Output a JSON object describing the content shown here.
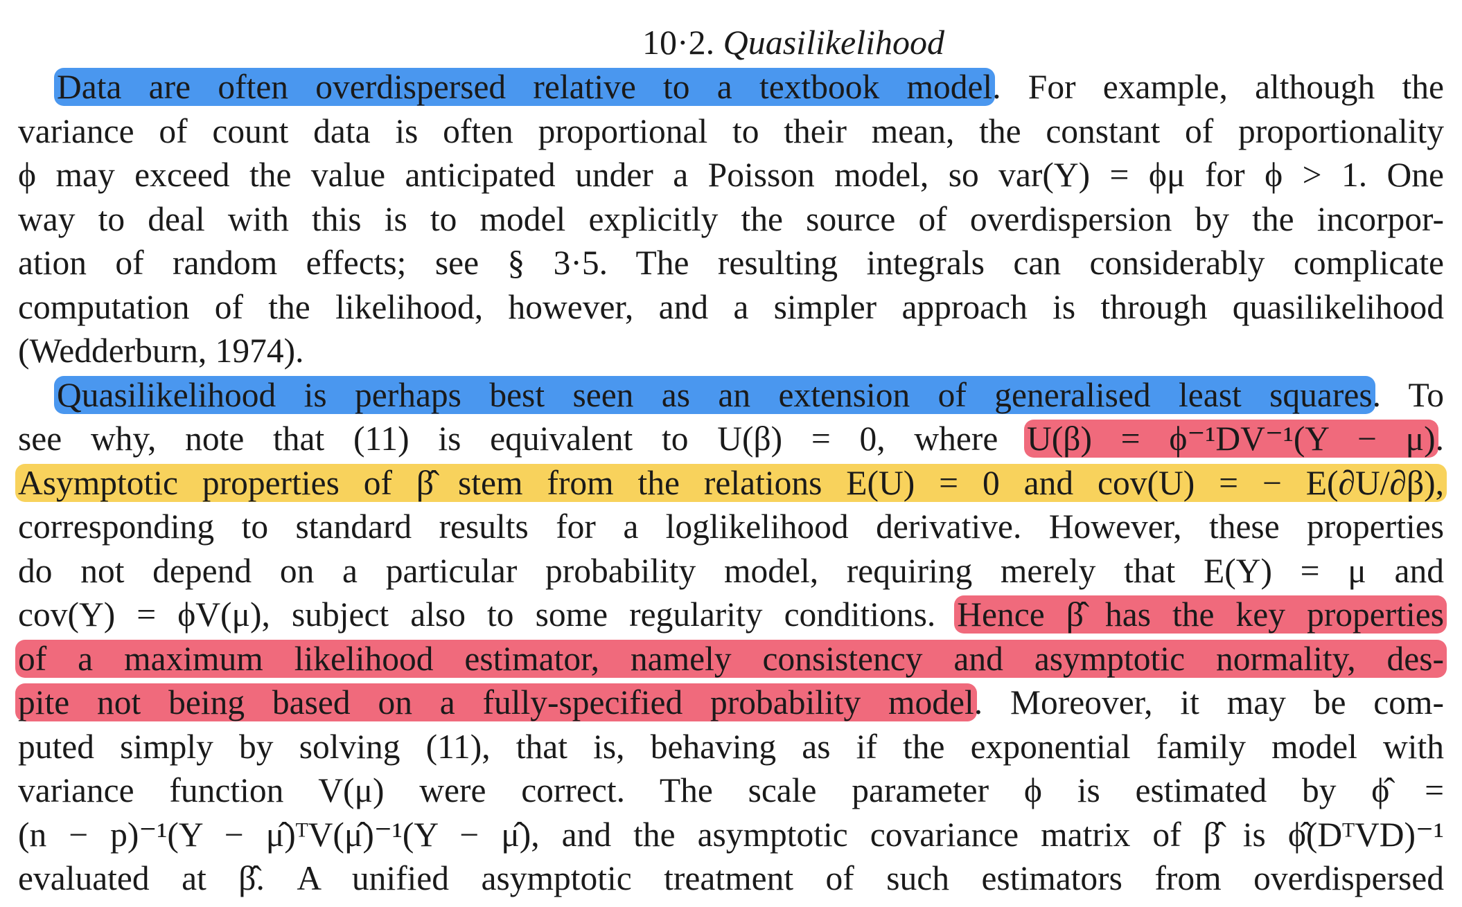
{
  "heading": {
    "number": "10·2.",
    "title": "Quasilikelihood"
  },
  "paragraph1": {
    "lines": [
      {
        "hl_blue": "Data are often overdispersed relative to a textbook model",
        "rest": ". For example, although the"
      },
      {
        "text": "variance of count data is often proportional to their mean, the constant of proportionality"
      },
      {
        "text": "ϕ may exceed the value anticipated under a Poisson model, so var(Y) = ϕμ for ϕ > 1. One"
      },
      {
        "text": "way to deal with this is to model explicitly the source of overdispersion by the incorpor-"
      },
      {
        "text": "ation of random effects; see § 3·5. The resulting integrals can considerably complicate"
      },
      {
        "text": "computation of the likelihood, however, and a simpler approach is through quasilikelihood"
      },
      {
        "text": "(Wedderburn, 1974)."
      }
    ]
  },
  "paragraph2": {
    "lines": [
      {
        "hl_blue": "Quasilikelihood is perhaps best seen as an extension of generalised least squares",
        "rest": ". To"
      },
      {
        "pre": "see why, note that (11) is equivalent to U(β) = 0, where ",
        "hl_red": "U(β) = ϕ⁻¹DV⁻¹(Y − μ)",
        "rest": "."
      },
      {
        "hl_yellow": "Asymptotic properties of β̂ stem from the relations E(U) = 0 and cov(U) = − E(∂U/∂β),"
      },
      {
        "text": "corresponding to standard results for a loglikelihood derivative. However, these properties"
      },
      {
        "text": "do not depend on a particular probability model, requiring merely that E(Y) = μ and"
      },
      {
        "pre": "cov(Y) = ϕV(μ), subject also to some regularity conditions. ",
        "hl_red": "Hence β̂ has the key properties"
      },
      {
        "hl_red": "of a maximum likelihood estimator, namely consistency and asymptotic normality, des-"
      },
      {
        "hl_red": "pite not being based on a fully-specified probability model",
        "rest": ". Moreover, it may be com-"
      },
      {
        "text": "puted simply by solving (11), that is, behaving as if the exponential family model with"
      },
      {
        "text": "variance function V(μ) were correct. The scale parameter ϕ is estimated by ϕ̂ ="
      },
      {
        "text": "(n − p)⁻¹(Y − μ̂)ᵀV(μ̂)⁻¹(Y − μ̂), and the asymptotic covariance matrix of β̂ is ϕ̂(DᵀVD)⁻¹"
      },
      {
        "text": "evaluated at β̂. A unified asymptotic treatment of such estimators from overdispersed"
      }
    ]
  },
  "colors": {
    "highlight_blue": "#4a97ef",
    "highlight_yellow": "#f8d25c",
    "highlight_red": "#f06a7c"
  }
}
